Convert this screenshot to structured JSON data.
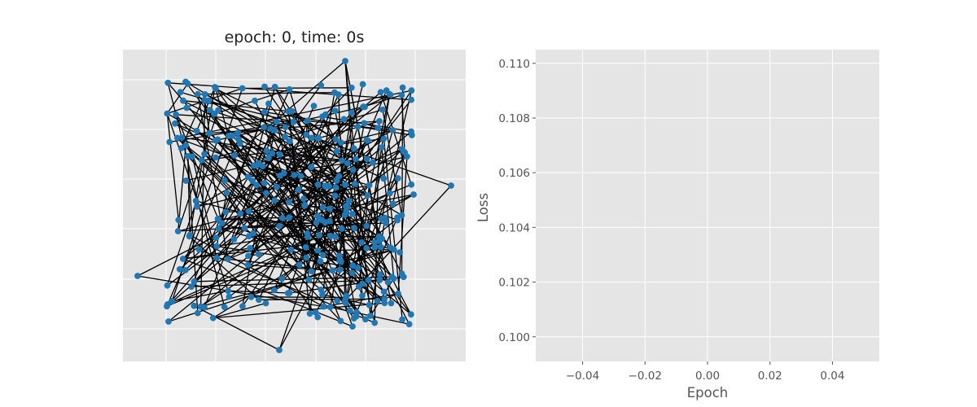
{
  "chart_data": [
    {
      "type": "network",
      "title": "epoch: 0, time: 0s",
      "grid": true,
      "axes_ticks_visible": false,
      "node_color": "#1f77b4",
      "edge_color": "#000000",
      "background": "#e5e5e5",
      "node_count": 300,
      "random_seed": 7
    },
    {
      "type": "line",
      "xlabel": "Epoch",
      "ylabel": "Loss",
      "xlim": [
        -0.055,
        0.055
      ],
      "ylim": [
        0.0991,
        0.1105
      ],
      "xticks": [
        "−0.04",
        "−0.02",
        "0.00",
        "0.02",
        "0.04"
      ],
      "xtick_values": [
        -0.04,
        -0.02,
        0.0,
        0.02,
        0.04
      ],
      "yticks": [
        "0.100",
        "0.102",
        "0.104",
        "0.106",
        "0.108",
        "0.110"
      ],
      "ytick_values": [
        0.1,
        0.102,
        0.104,
        0.106,
        0.108,
        0.11
      ],
      "series": [],
      "grid": true,
      "background": "#e5e5e5"
    }
  ]
}
